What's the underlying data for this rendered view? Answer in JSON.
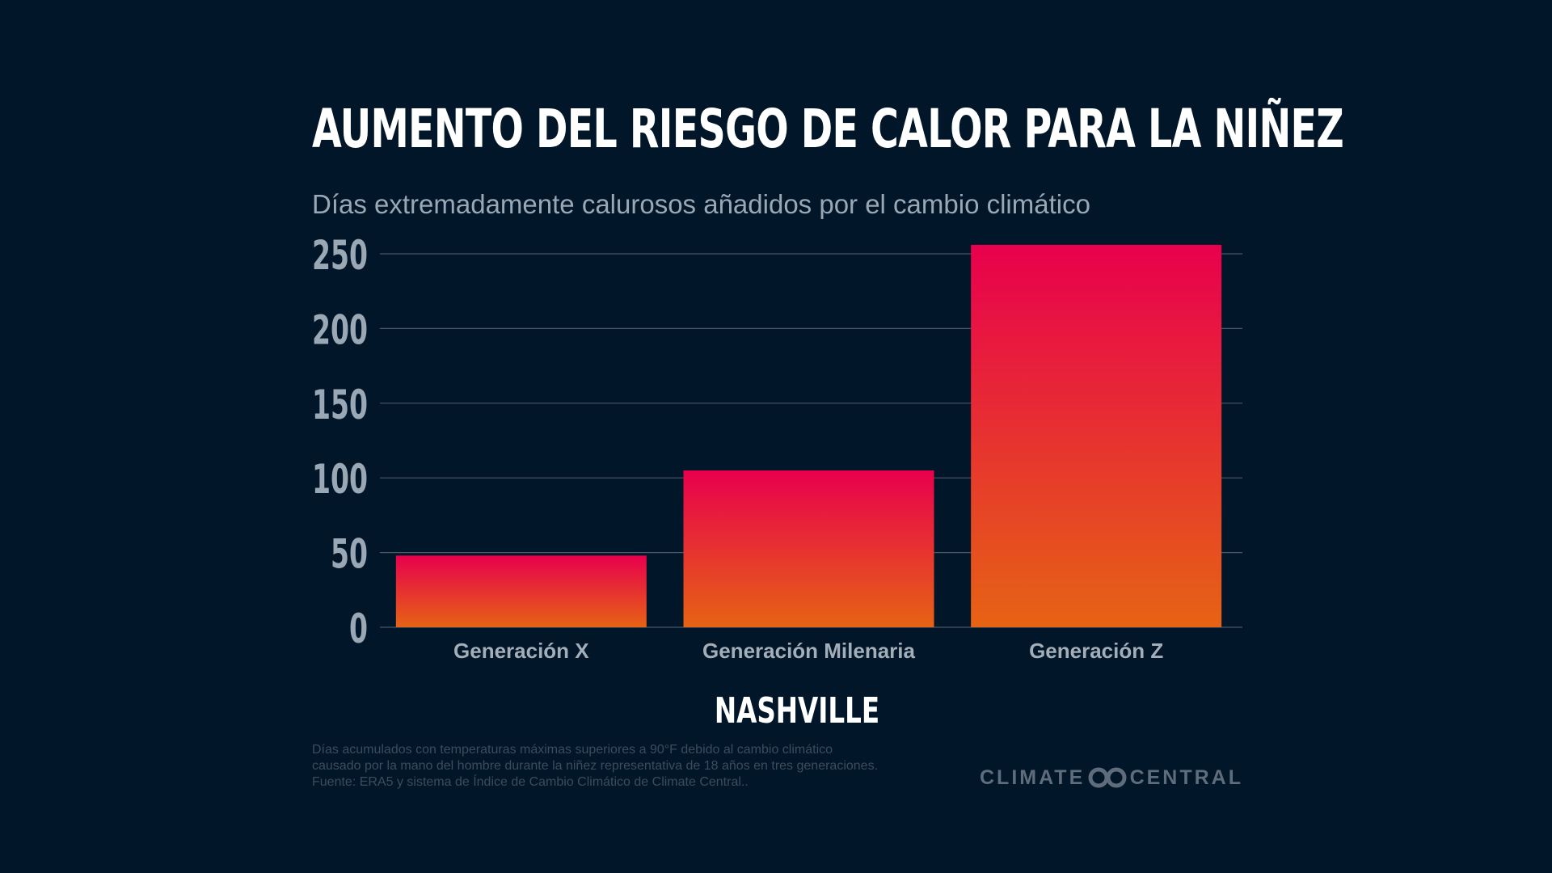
{
  "header": {
    "title": "AUMENTO DEL RIESGO DE CALOR PARA LA NIÑEZ",
    "subtitle": "Días extremadamente calurosos añadidos por el cambio climático"
  },
  "chart_data": {
    "type": "bar",
    "title": "AUMENTO DEL RIESGO DE CALOR PARA LA NIÑEZ",
    "subtitle": "Días extremadamente calurosos añadidos por el cambio climático",
    "categories": [
      "Generación X",
      "Generación Milenaria",
      "Generación Z"
    ],
    "values": [
      48,
      105,
      256
    ],
    "ylim": [
      0,
      250
    ],
    "yticks": [
      0,
      50,
      100,
      150,
      200,
      250
    ],
    "grid": true,
    "xlabel": "NASHVILLE",
    "ylabel": "",
    "colors": {
      "bar_top": "#e8004d",
      "bar_bottom": "#e66314",
      "grid": "#4a5664"
    }
  },
  "location": "NASHVILLE",
  "footnote": {
    "lines": [
      "Días acumulados con temperaturas máximas superiores a 90°F debido al cambio climático",
      "causado por la mano del hombre durante la niñez representativa de 18 años en tres generaciones.",
      "Fuente: ERA5 y sistema de Índice de Cambio Climático de Climate Central.."
    ]
  },
  "brand": {
    "left": "CLIMATE",
    "right": "CENTRAL",
    "logo_icon": "infinity-loop-icon"
  }
}
